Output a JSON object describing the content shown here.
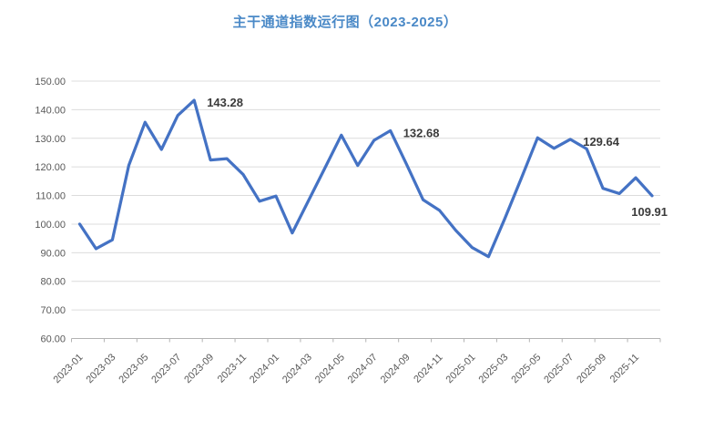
{
  "page": {
    "title": "主干通道指数运行图（2023-2025）"
  },
  "chart_data": {
    "type": "line",
    "title": "主干通道指数运行图（2023-2025）",
    "x": [
      "2023-01",
      "2023-02",
      "2023-03",
      "2023-04",
      "2023-05",
      "2023-06",
      "2023-07",
      "2023-08",
      "2023-09",
      "2023-10",
      "2023-11",
      "2023-12",
      "2024-01",
      "2024-02",
      "2024-03",
      "2024-04",
      "2024-05",
      "2024-06",
      "2024-07",
      "2024-08",
      "2024-09",
      "2024-10",
      "2024-11",
      "2024-12",
      "2025-01",
      "2025-02",
      "2025-03",
      "2025-04",
      "2025-05",
      "2025-06",
      "2025-07",
      "2025-08",
      "2025-09",
      "2025-10",
      "2025-11",
      "2025-12"
    ],
    "values": [
      100.0,
      91.4,
      94.5,
      120.5,
      135.6,
      126.1,
      138.0,
      143.28,
      122.4,
      122.9,
      117.3,
      108.0,
      109.8,
      96.9,
      108.3,
      119.7,
      131.1,
      120.5,
      129.3,
      132.68,
      120.8,
      108.5,
      104.8,
      97.8,
      91.8,
      88.6,
      102.0,
      116.0,
      130.2,
      126.5,
      129.64,
      126.3,
      112.5,
      110.7,
      116.2,
      109.91
    ],
    "xtick_labels": [
      "2023-01",
      "2023-03",
      "2023-05",
      "2023-07",
      "2023-09",
      "2023-11",
      "2024-01",
      "2024-03",
      "2024-05",
      "2024-07",
      "2024-09",
      "2024-11",
      "2025-01",
      "2025-03",
      "2025-05",
      "2025-07",
      "2025-09",
      "2025-11"
    ],
    "ytick_labels": [
      "150.00",
      "140.00",
      "130.00",
      "120.00",
      "110.00",
      "100.00",
      "90.00",
      "80.00",
      "70.00",
      "60.00"
    ],
    "ylim": [
      60,
      150
    ],
    "ytick_step": 10,
    "grid": true,
    "legend_position": "none",
    "annotations": [
      {
        "month": "2023-08",
        "text": "143.28",
        "placement": "right"
      },
      {
        "month": "2024-08",
        "text": "132.68",
        "placement": "right"
      },
      {
        "month": "2025-07",
        "text": "129.64",
        "placement": "right"
      },
      {
        "month": "2025-12",
        "text": "109.91",
        "placement": "below-left"
      }
    ],
    "colors": {
      "line": "#4472C4",
      "title": "#4a89c7",
      "gridline": "#dcdcdc",
      "axis_line": "#b3b3b3",
      "tick_label": "#595959",
      "data_label": "#3b3b3b"
    }
  }
}
